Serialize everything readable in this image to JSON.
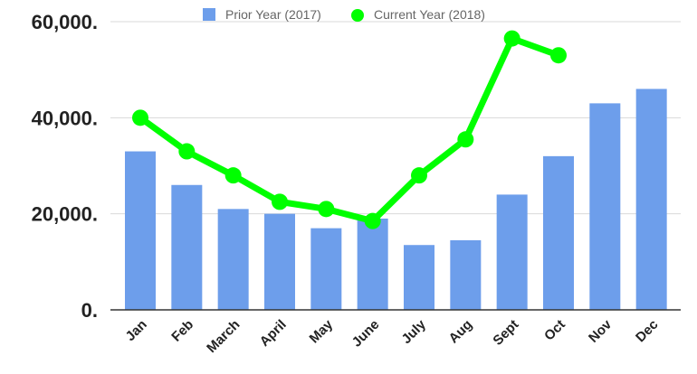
{
  "chart_data": {
    "type": "bar",
    "categories": [
      "Jan",
      "Feb",
      "March",
      "April",
      "May",
      "June",
      "July",
      "Aug",
      "Sept",
      "Oct",
      "Nov",
      "Dec"
    ],
    "series": [
      {
        "name": "Prior Year (2017)",
        "type": "bar",
        "color": "#6d9eeb",
        "values": [
          33000,
          26000,
          21000,
          20000,
          17000,
          19000,
          13500,
          14500,
          24000,
          32000,
          43000,
          46000
        ]
      },
      {
        "name": "Current Year (2018)",
        "type": "line",
        "color": "#00ff00",
        "values": [
          40000,
          33000,
          28000,
          22500,
          21000,
          18500,
          28000,
          35500,
          56500,
          53000,
          null,
          null
        ]
      }
    ],
    "yticks": [
      {
        "value": 0,
        "label": "0."
      },
      {
        "value": 20000,
        "label": "20,000."
      },
      {
        "value": 40000,
        "label": "40,000."
      },
      {
        "value": 60000,
        "label": "60,000."
      }
    ],
    "ylim": [
      0,
      60000
    ],
    "grid": true,
    "legend": "top"
  }
}
